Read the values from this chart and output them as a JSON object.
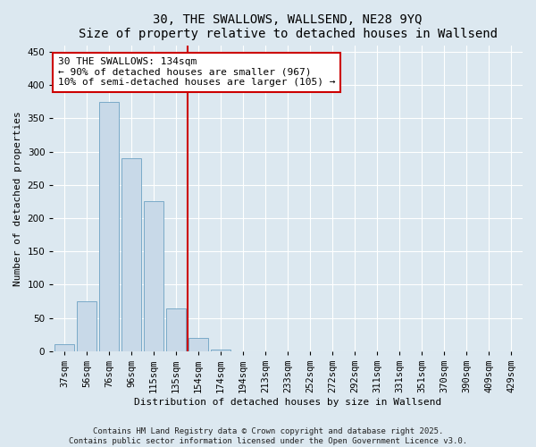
{
  "title1": "30, THE SWALLOWS, WALLSEND, NE28 9YQ",
  "title2": "Size of property relative to detached houses in Wallsend",
  "xlabel": "Distribution of detached houses by size in Wallsend",
  "ylabel": "Number of detached properties",
  "categories": [
    "37sqm",
    "56sqm",
    "76sqm",
    "96sqm",
    "115sqm",
    "135sqm",
    "154sqm",
    "174sqm",
    "194sqm",
    "213sqm",
    "233sqm",
    "252sqm",
    "272sqm",
    "292sqm",
    "311sqm",
    "331sqm",
    "351sqm",
    "370sqm",
    "390sqm",
    "409sqm",
    "429sqm"
  ],
  "values": [
    10,
    75,
    375,
    290,
    225,
    65,
    20,
    2,
    0,
    0,
    0,
    0,
    0,
    0,
    0,
    0,
    0,
    0,
    0,
    0,
    0
  ],
  "bar_color": "#c8d9e8",
  "bar_edge_color": "#7aaac8",
  "vline_x": 5.5,
  "vline_color": "#cc0000",
  "annotation_text": "30 THE SWALLOWS: 134sqm\n← 90% of detached houses are smaller (967)\n10% of semi-detached houses are larger (105) →",
  "annotation_box_color": "#cc0000",
  "ylim": [
    0,
    460
  ],
  "yticks": [
    0,
    50,
    100,
    150,
    200,
    250,
    300,
    350,
    400,
    450
  ],
  "bg_color": "#dce8f0",
  "plot_bg_color": "#dce8f0",
  "footer1": "Contains HM Land Registry data © Crown copyright and database right 2025.",
  "footer2": "Contains public sector information licensed under the Open Government Licence v3.0.",
  "title_fontsize": 10,
  "axis_label_fontsize": 8,
  "tick_fontsize": 7.5,
  "annotation_fontsize": 8,
  "footer_fontsize": 6.5
}
